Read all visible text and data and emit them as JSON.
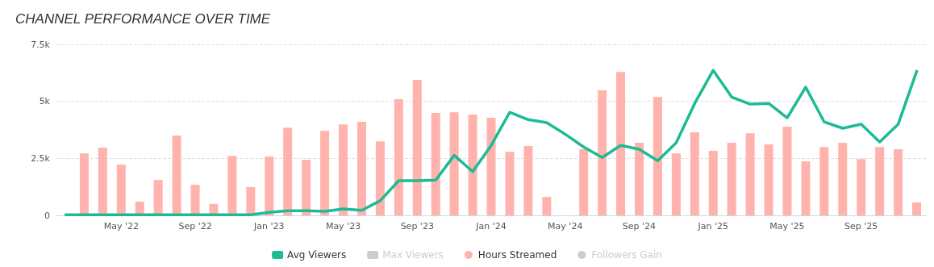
{
  "chart_data": {
    "type": "bar",
    "title": "CHANNEL PERFORMANCE OVER TIME",
    "categories": [
      null,
      null,
      null,
      "May '22",
      null,
      null,
      null,
      "Sep '22",
      null,
      null,
      null,
      "Jan '23",
      null,
      null,
      null,
      "May '23",
      null,
      null,
      null,
      "Sep '23",
      null,
      null,
      null,
      "Jan '24",
      null,
      null,
      null,
      "May '24",
      null,
      null,
      null,
      "Sep '24",
      null,
      null,
      null,
      "Jan '25",
      null,
      null,
      null,
      "May '25",
      null,
      null,
      null,
      "Sep '25",
      null,
      null,
      null
    ],
    "series": [
      {
        "name": "Avg Viewers",
        "type": "line",
        "color": "#1dbb94",
        "values": [
          30,
          30,
          30,
          30,
          30,
          30,
          30,
          30,
          30,
          30,
          30,
          130,
          200,
          200,
          180,
          280,
          220,
          640,
          1520,
          1520,
          1550,
          2630,
          1920,
          3070,
          4520,
          4200,
          4070,
          3560,
          3000,
          2540,
          3070,
          2900,
          2400,
          3180,
          4910,
          6360,
          5190,
          4880,
          4910,
          4280,
          5620,
          4100,
          3820,
          4000,
          3220,
          4000,
          6320
        ]
      },
      {
        "name": "Max Viewers",
        "type": "line",
        "color": "#cccccc",
        "values": [
          null,
          null,
          null,
          null,
          null,
          null,
          null,
          null,
          null,
          null,
          null,
          null,
          null,
          null,
          null,
          null,
          null,
          null,
          null,
          null,
          null,
          null,
          null,
          null,
          null,
          null,
          null,
          null,
          null,
          null,
          null,
          null,
          null,
          null,
          null,
          null,
          null,
          null,
          null,
          null,
          null,
          null,
          null,
          null,
          null,
          null,
          null
        ]
      },
      {
        "name": "Hours Streamed",
        "color": "#ffb3ac",
        "values": [
          null,
          2720,
          2970,
          2230,
          600,
          1550,
          3500,
          1340,
          500,
          2610,
          1240,
          2580,
          3850,
          2440,
          3710,
          3990,
          4100,
          3250,
          5090,
          5940,
          4490,
          4520,
          4420,
          4280,
          2790,
          3040,
          810,
          null,
          2900,
          5480,
          6290,
          3180,
          5190,
          2720,
          3640,
          2830,
          3180,
          3600,
          3110,
          3890,
          2370,
          3000,
          3180,
          2470,
          3000,
          2900,
          570
        ]
      },
      {
        "name": "Followers Gain",
        "color": "#cccccc",
        "values": [
          null,
          null,
          null,
          null,
          null,
          null,
          null,
          null,
          null,
          null,
          null,
          null,
          null,
          null,
          null,
          null,
          null,
          null,
          null,
          null,
          null,
          null,
          null,
          null,
          null,
          null,
          null,
          null,
          null,
          null,
          null,
          null,
          null,
          null,
          null,
          null,
          null,
          null,
          null,
          null,
          null,
          null,
          null,
          null,
          null,
          null,
          null
        ]
      }
    ],
    "ylim": [
      0,
      7500
    ],
    "yticks": [
      0,
      {
        "value": 2500,
        "label": "2.5k"
      },
      {
        "value": 5000,
        "label": "5k"
      },
      {
        "value": 7500,
        "label": "7.5k"
      }
    ],
    "grid": "y",
    "legend": "bottom",
    "marker": "none",
    "line_style": "solid"
  }
}
